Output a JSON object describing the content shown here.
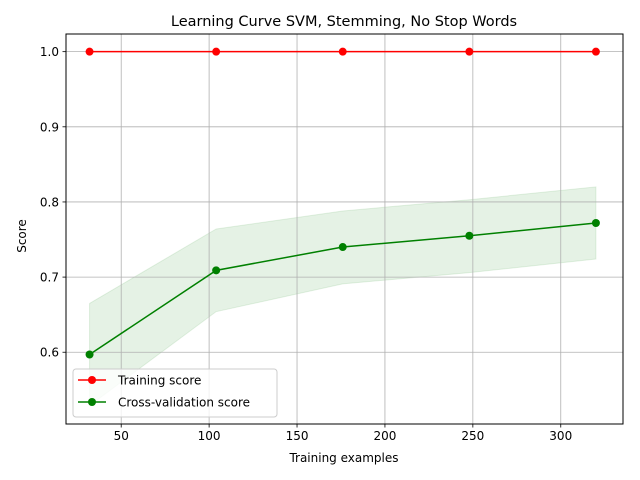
{
  "chart_data": {
    "type": "line",
    "title": "Learning Curve SVM, Stemming, No Stop Words",
    "xlabel": "Training examples",
    "ylabel": "Score",
    "xlim": [
      18.6,
      335.4
    ],
    "ylim": [
      0.5045,
      1.0235
    ],
    "x_ticks": [
      50,
      100,
      150,
      200,
      250,
      300
    ],
    "y_ticks": [
      0.6,
      0.7,
      0.8,
      0.9,
      1.0
    ],
    "x_tick_labels": [
      "50",
      "100",
      "150",
      "200",
      "250",
      "300"
    ],
    "y_tick_labels": [
      "0.6",
      "0.7",
      "0.8",
      "0.9",
      "1.0"
    ],
    "grid": true,
    "legend_position": "lower-left",
    "x": [
      32,
      104,
      176,
      248,
      320
    ],
    "series": [
      {
        "name": "Training score",
        "color": "#ff0000",
        "marker": "circle",
        "values": [
          1.0,
          1.0,
          1.0,
          1.0,
          1.0
        ],
        "band_lower": [
          1.0,
          1.0,
          1.0,
          1.0,
          1.0
        ],
        "band_upper": [
          1.0,
          1.0,
          1.0,
          1.0,
          1.0
        ]
      },
      {
        "name": "Cross-validation score",
        "color": "#008000",
        "marker": "circle",
        "values": [
          0.597,
          0.709,
          0.74,
          0.755,
          0.772
        ],
        "band_lower": [
          0.529,
          0.654,
          0.691,
          0.706,
          0.724
        ],
        "band_upper": [
          0.665,
          0.764,
          0.788,
          0.803,
          0.82
        ]
      }
    ]
  }
}
